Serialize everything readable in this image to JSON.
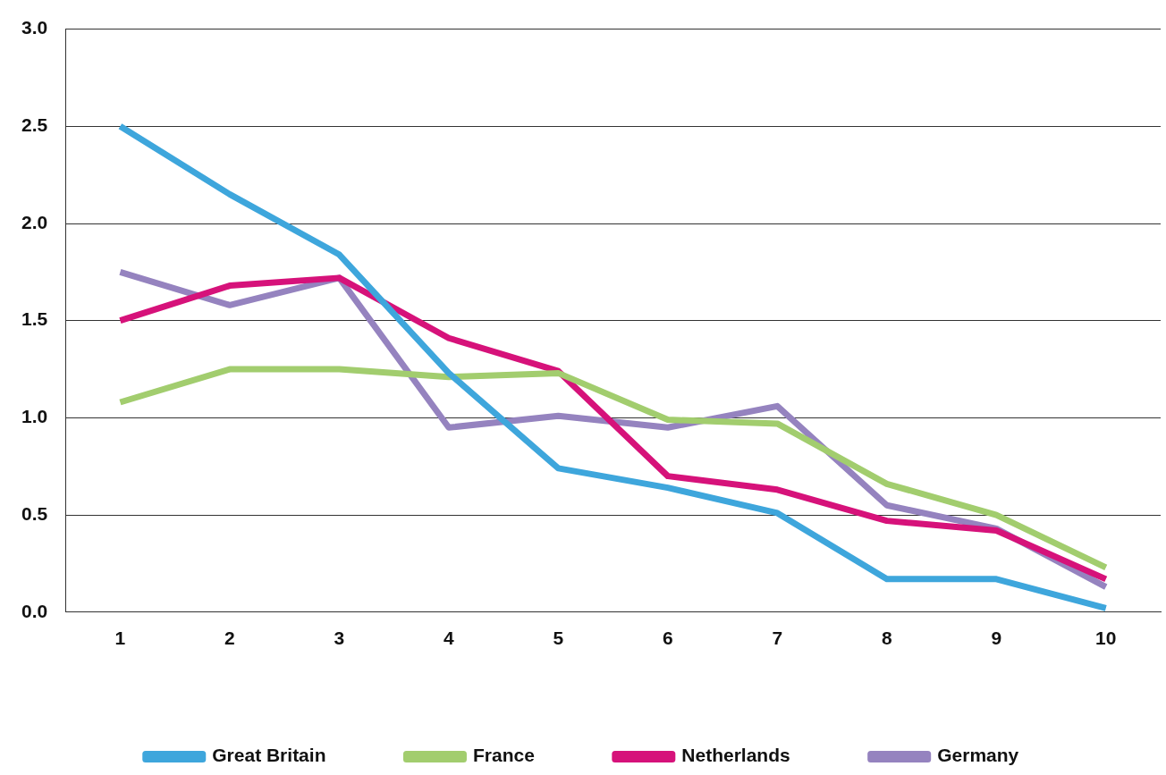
{
  "chart_data": {
    "type": "line",
    "categories": [
      "1",
      "2",
      "3",
      "4",
      "5",
      "6",
      "7",
      "8",
      "9",
      "10"
    ],
    "series": [
      {
        "name": "Great Britain",
        "color": "#3ea6dc",
        "values": [
          2.5,
          2.15,
          1.84,
          1.23,
          0.74,
          0.64,
          0.51,
          0.17,
          0.17,
          0.02
        ]
      },
      {
        "name": "France",
        "color": "#a2cd6e",
        "values": [
          1.08,
          1.25,
          1.25,
          1.21,
          1.23,
          0.99,
          0.97,
          0.66,
          0.5,
          0.23
        ]
      },
      {
        "name": "Netherlands",
        "color": "#d6127a",
        "values": [
          1.5,
          1.68,
          1.72,
          1.41,
          1.24,
          0.7,
          0.63,
          0.47,
          0.42,
          0.17
        ]
      },
      {
        "name": "Germany",
        "color": "#9583bf",
        "values": [
          1.75,
          1.58,
          1.72,
          0.95,
          1.01,
          0.95,
          1.06,
          0.55,
          0.43,
          0.13
        ]
      }
    ],
    "ylim": [
      0,
      3
    ],
    "yticks": [
      {
        "value": 0,
        "label": "0.0"
      },
      {
        "value": 0.5,
        "label": "0.5"
      },
      {
        "value": 1,
        "label": "1.0"
      },
      {
        "value": 1.5,
        "label": "1.5"
      },
      {
        "value": 2,
        "label": "2.0"
      },
      {
        "value": 2.5,
        "label": "2.5"
      },
      {
        "value": 3,
        "label": "3.0"
      }
    ],
    "grid": "y",
    "legend": "bottom",
    "marker": "none",
    "line_style": "solid"
  }
}
